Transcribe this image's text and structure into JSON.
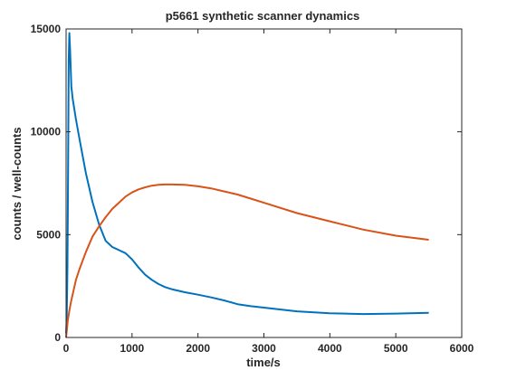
{
  "chart_data": {
    "type": "line",
    "title": "p5661 synthetic scanner dynamics",
    "xlabel": "time/s",
    "ylabel": "counts / well-counts",
    "xlim": [
      0,
      6000
    ],
    "ylim": [
      0,
      15000
    ],
    "xticks": [
      0,
      1000,
      2000,
      3000,
      4000,
      5000,
      6000
    ],
    "yticks": [
      0,
      5000,
      10000,
      15000
    ],
    "grid": false,
    "legend": "none",
    "series": [
      {
        "color": "#0072BD",
        "x": [
          0,
          10,
          20,
          30,
          40,
          50,
          60,
          80,
          100,
          150,
          200,
          300,
          400,
          500,
          600,
          700,
          800,
          900,
          1000,
          1100,
          1200,
          1300,
          1400,
          1500,
          1600,
          1800,
          2000,
          2200,
          2400,
          2600,
          2800,
          3000,
          3500,
          4000,
          4500,
          5000,
          5500
        ],
        "y": [
          200,
          900,
          3500,
          8000,
          13500,
          14800,
          14000,
          12200,
          11600,
          10600,
          9700,
          8000,
          6600,
          5500,
          4700,
          4400,
          4250,
          4100,
          3800,
          3400,
          3050,
          2800,
          2600,
          2450,
          2350,
          2200,
          2080,
          1950,
          1800,
          1620,
          1520,
          1450,
          1270,
          1180,
          1140,
          1160,
          1200
        ]
      },
      {
        "color": "#D95319",
        "x": [
          0,
          25,
          50,
          75,
          100,
          150,
          200,
          300,
          400,
          500,
          600,
          700,
          800,
          900,
          1000,
          1100,
          1200,
          1300,
          1400,
          1500,
          1600,
          1800,
          2000,
          2200,
          2400,
          2600,
          2800,
          3000,
          3500,
          4000,
          4500,
          5000,
          5500
        ],
        "y": [
          0,
          800,
          1300,
          1750,
          2100,
          2800,
          3300,
          4150,
          4900,
          5400,
          5850,
          6250,
          6550,
          6850,
          7050,
          7200,
          7300,
          7380,
          7420,
          7440,
          7440,
          7420,
          7350,
          7250,
          7100,
          6950,
          6750,
          6550,
          6050,
          5650,
          5250,
          4950,
          4750
        ]
      }
    ]
  }
}
